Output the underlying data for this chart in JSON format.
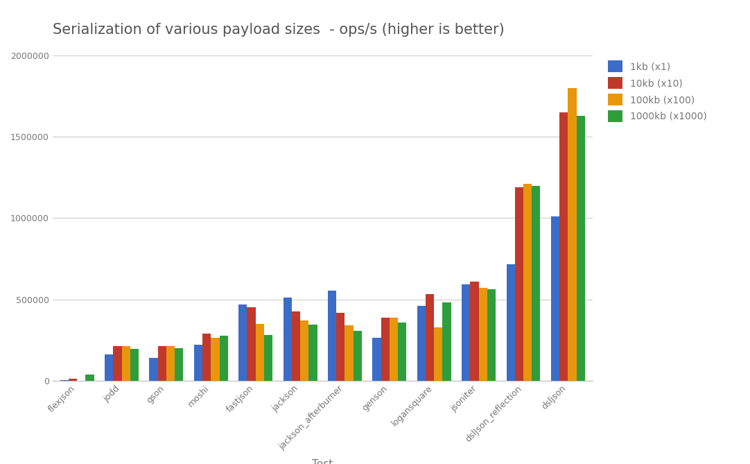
{
  "title": "Serialization of various payload sizes  - ops/s (higher is better)",
  "xlabel": "Test",
  "ylabel": "",
  "categories": [
    "flexjson",
    "jodd",
    "gson",
    "moshi",
    "fastjson",
    "jackson",
    "jackson_afterburner",
    "genson",
    "logansquare",
    "jsoniter",
    "dslJson_reflection",
    "dsljson"
  ],
  "series": [
    {
      "label": "1kb (x1)",
      "color": "#3B6CC8",
      "values": [
        2000,
        160000,
        140000,
        220000,
        470000,
        510000,
        555000,
        265000,
        460000,
        590000,
        715000,
        1010000
      ]
    },
    {
      "label": "10kb (x10)",
      "color": "#C0392B",
      "values": [
        13000,
        210000,
        210000,
        290000,
        450000,
        425000,
        415000,
        385000,
        530000,
        610000,
        1190000,
        1650000
      ]
    },
    {
      "label": "100kb (x100)",
      "color": "#E8960C",
      "values": [
        0,
        210000,
        210000,
        265000,
        350000,
        370000,
        340000,
        385000,
        325000,
        570000,
        1210000,
        1800000
      ]
    },
    {
      "label": "1000kb (x1000)",
      "color": "#2E9E3A",
      "values": [
        35000,
        195000,
        200000,
        275000,
        280000,
        345000,
        305000,
        355000,
        480000,
        562000,
        1200000,
        1630000
      ]
    }
  ],
  "ylim": [
    0,
    2000000
  ],
  "yticks": [
    0,
    500000,
    1000000,
    1500000,
    2000000
  ],
  "ytick_labels": [
    "0",
    "500000",
    "1000000",
    "1500000",
    "2000000"
  ],
  "background_color": "#ffffff",
  "grid_color": "#cccccc",
  "title_fontsize": 15,
  "axis_label_fontsize": 11,
  "tick_fontsize": 9,
  "legend_fontsize": 10,
  "bar_width": 0.19,
  "figsize": [
    10.82,
    6.69
  ],
  "dpi": 100
}
